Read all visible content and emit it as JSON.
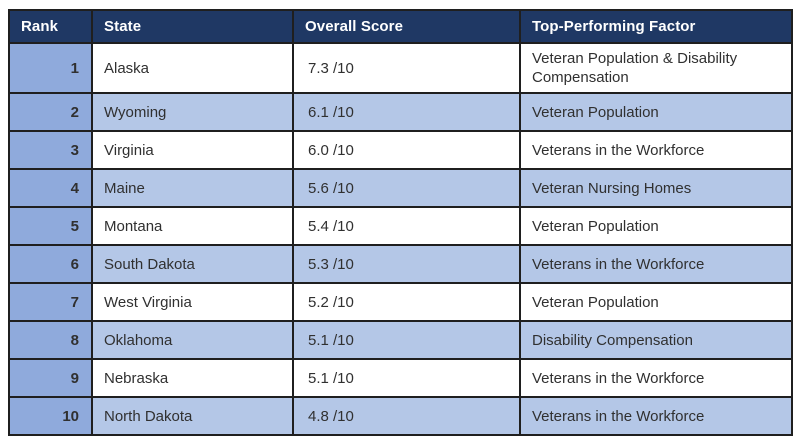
{
  "chart_data": {
    "type": "table",
    "columns": [
      "Rank",
      "State",
      "Overall Score",
      "Top-Performing Factor"
    ],
    "rows": [
      {
        "rank": "1",
        "state": "Alaska",
        "score": "7.3 /10",
        "factor": "Veteran Population & Disability Compensation"
      },
      {
        "rank": "2",
        "state": "Wyoming",
        "score": "6.1 /10",
        "factor": "Veteran Population"
      },
      {
        "rank": "3",
        "state": "Virginia",
        "score": "6.0 /10",
        "factor": "Veterans in the Workforce"
      },
      {
        "rank": "4",
        "state": "Maine",
        "score": "5.6 /10",
        "factor": "Veteran Nursing Homes"
      },
      {
        "rank": "5",
        "state": "Montana",
        "score": "5.4 /10",
        "factor": "Veteran Population"
      },
      {
        "rank": "6",
        "state": "South Dakota",
        "score": "5.3 /10",
        "factor": "Veterans in the Workforce"
      },
      {
        "rank": "7",
        "state": "West Virginia",
        "score": "5.2 /10",
        "factor": "Veteran Population"
      },
      {
        "rank": "8",
        "state": "Oklahoma",
        "score": "5.1 /10",
        "factor": "Disability Compensation"
      },
      {
        "rank": "9",
        "state": "Nebraska",
        "score": "5.1 /10",
        "factor": "Veterans in the Workforce"
      },
      {
        "rank": "10",
        "state": "North Dakota",
        "score": "4.8 /10",
        "factor": "Veterans in the Workforce"
      }
    ],
    "scores_numeric": [
      7.3,
      6.1,
      6.0,
      5.6,
      5.4,
      5.3,
      5.2,
      5.1,
      5.1,
      4.8
    ],
    "score_scale": 10
  },
  "colors": {
    "header_bg": "#1F3864",
    "header_text": "#FFFFFF",
    "rank_cell_bg": "#8FAADC",
    "stripe_row_bg": "#B4C7E7",
    "plain_row_bg": "#FFFFFF",
    "border": "#1F1F1F",
    "body_text": "#303030"
  }
}
